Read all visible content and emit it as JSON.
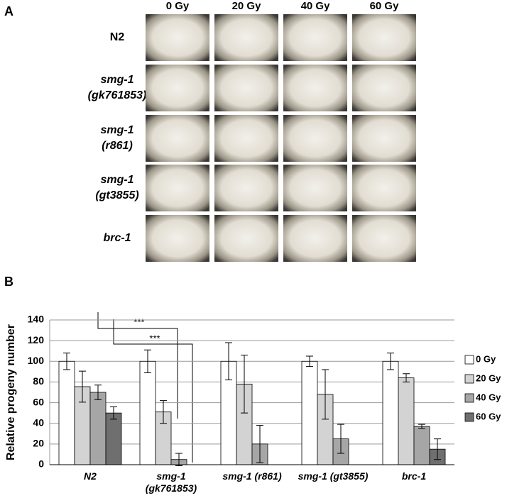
{
  "panel_a": {
    "label": "A",
    "columns": [
      "0 Gy",
      "20 Gy",
      "40 Gy",
      "60 Gy"
    ],
    "rows": [
      [
        "N2"
      ],
      [
        "smg-1",
        "(gk761853)"
      ],
      [
        "smg-1",
        "(r861)"
      ],
      [
        "smg-1",
        "(gt3855)"
      ],
      [
        "brc-1"
      ]
    ]
  },
  "chart_data": {
    "label": "B",
    "type": "bar",
    "ylabel": "Relative progeny number",
    "categories": [
      "N2",
      "smg-1 (gk761853)",
      "smg-1 (r861)",
      "smg-1 (gt3855)",
      "brc-1"
    ],
    "series": [
      {
        "name": "0 Gy",
        "color": "#ffffff",
        "values": [
          100,
          100,
          100,
          100,
          100
        ],
        "errors": [
          8,
          11,
          18,
          5,
          8
        ]
      },
      {
        "name": "20 Gy",
        "color": "#d3d3d3",
        "values": [
          75.5,
          51,
          78,
          68,
          84
        ],
        "errors": [
          15,
          11,
          28,
          24,
          4
        ]
      },
      {
        "name": "40 Gy",
        "color": "#a6a6a6",
        "values": [
          70,
          5,
          20,
          25,
          37
        ],
        "errors": [
          7,
          6,
          18,
          14,
          2
        ]
      },
      {
        "name": "60 Gy",
        "color": "#6f6f6f",
        "values": [
          50,
          0,
          0,
          0,
          15
        ],
        "errors": [
          6,
          null,
          null,
          null,
          10
        ]
      }
    ],
    "ylim": [
      0,
      140
    ],
    "yticks": [
      0,
      20,
      40,
      60,
      80,
      100,
      120,
      140
    ],
    "grid": true,
    "legend": "right",
    "annotations": [
      "***",
      "***"
    ]
  }
}
